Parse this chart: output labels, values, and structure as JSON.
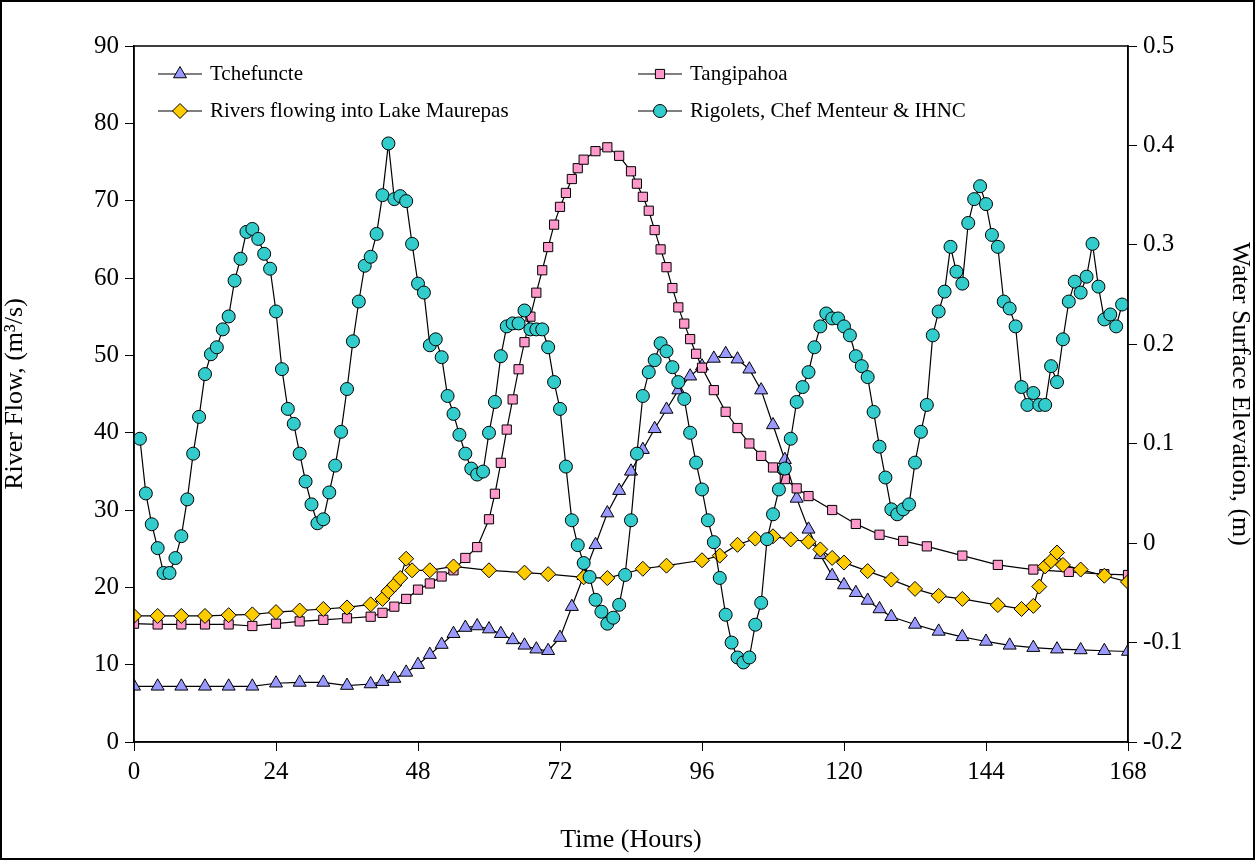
{
  "chart_data": {
    "type": "line",
    "xlabel": "Time (Hours)",
    "ylabel": "River Flow, (m³/s)",
    "y2label": "Water Surface Elevation, (m)",
    "xlim": [
      0,
      168
    ],
    "xticks": [
      0,
      24,
      48,
      72,
      96,
      120,
      144,
      168
    ],
    "ylim": [
      0,
      90
    ],
    "yticks": [
      0,
      10,
      20,
      30,
      40,
      50,
      60,
      70,
      80,
      90
    ],
    "y2lim": [
      -0.2,
      0.5
    ],
    "y2ticks": [
      -0.2,
      -0.1,
      0,
      0.1,
      0.2,
      0.3,
      0.4,
      0.5
    ],
    "legend": "top",
    "grid": false,
    "line_style": "solid",
    "series": [
      {
        "name": "Tchefuncte",
        "color": "#9999ff",
        "marker": "triangle",
        "x": [
          0,
          4,
          8,
          12,
          16,
          20,
          24,
          28,
          32,
          36,
          40,
          42,
          44,
          46,
          48,
          50,
          52,
          54,
          56,
          58,
          60,
          62,
          64,
          66,
          68,
          70,
          72,
          74,
          76,
          78,
          80,
          82,
          84,
          86,
          88,
          90,
          92,
          94,
          96,
          98,
          100,
          102,
          104,
          106,
          108,
          110,
          112,
          114,
          116,
          118,
          120,
          122,
          124,
          126,
          128,
          132,
          136,
          140,
          144,
          148,
          152,
          156,
          160,
          164,
          168
        ],
        "values": [
          7.2,
          7.2,
          7.2,
          7.2,
          7.2,
          7.2,
          7.6,
          7.7,
          7.7,
          7.3,
          7.5,
          7.8,
          8.2,
          9,
          10,
          11.3,
          12.6,
          14,
          14.8,
          15,
          14.6,
          14,
          13.2,
          12.5,
          12,
          11.8,
          13.5,
          17.5,
          21.5,
          25.5,
          29.6,
          32.5,
          35,
          37.8,
          40.5,
          43,
          45.5,
          47.3,
          48.6,
          49.6,
          50.2,
          49.5,
          48.2,
          45.5,
          41,
          36.5,
          31.5,
          27.5,
          24.2,
          21.5,
          20.3,
          19.3,
          18.3,
          17.2,
          16.2,
          15.2,
          14.3,
          13.6,
          13,
          12.5,
          12.2,
          12,
          11.9,
          11.8,
          11.7
        ]
      },
      {
        "name": "Tangipahoa",
        "color": "#ff99cc",
        "marker": "square",
        "x": [
          0,
          4,
          8,
          12,
          16,
          20,
          24,
          28,
          32,
          36,
          40,
          42,
          44,
          46,
          48,
          50,
          52,
          54,
          56,
          58,
          60,
          61,
          62,
          63,
          64,
          65,
          66,
          67,
          68,
          69,
          70,
          71,
          72,
          73,
          74,
          75,
          76,
          78,
          80,
          82,
          84,
          85,
          86,
          87,
          88,
          89,
          90,
          91,
          92,
          93,
          94,
          95,
          96,
          98,
          100,
          102,
          104,
          106,
          108,
          110,
          112,
          114,
          118,
          122,
          126,
          130,
          134,
          140,
          146,
          152,
          158,
          164,
          168
        ],
        "values": [
          15.3,
          15.2,
          15.2,
          15.2,
          15.2,
          15,
          15.3,
          15.6,
          15.8,
          16,
          16.2,
          16.7,
          17.5,
          18.5,
          19.7,
          20.5,
          21.4,
          22.2,
          23.8,
          25.2,
          28.8,
          32.1,
          36.1,
          40.4,
          44.3,
          48.2,
          51.7,
          55,
          58.1,
          61,
          64,
          66.9,
          69.2,
          71,
          72.8,
          74.2,
          75.3,
          76.4,
          76.9,
          75.8,
          73.8,
          72.2,
          70.5,
          68.7,
          66.2,
          63.7,
          61.4,
          58.7,
          56.2,
          54.1,
          52.1,
          50.2,
          48.4,
          45.5,
          42.7,
          40.6,
          38.6,
          37,
          35.5,
          34,
          32.8,
          31.8,
          30,
          28.2,
          26.8,
          26,
          25.3,
          24.1,
          22.9,
          22.3,
          22,
          21.7,
          21.6
        ]
      },
      {
        "name": "Rivers flowing into Lake Maurepas",
        "color": "#ffcc00",
        "marker": "diamond",
        "x": [
          0,
          4,
          8,
          12,
          16,
          20,
          24,
          28,
          32,
          36,
          40,
          42,
          43,
          44,
          45,
          46,
          47,
          50,
          54,
          60,
          66,
          70,
          76,
          80,
          86,
          90,
          96,
          99,
          102,
          105,
          108,
          111,
          114,
          116,
          118,
          120,
          124,
          128,
          132,
          136,
          140,
          146,
          150,
          152,
          153,
          154,
          155,
          156,
          157,
          160,
          164,
          168
        ],
        "values": [
          16.3,
          16.3,
          16.3,
          16.3,
          16.4,
          16.5,
          16.8,
          17,
          17.2,
          17.4,
          17.8,
          18.5,
          19.5,
          20.3,
          21.2,
          23.7,
          22.2,
          22.2,
          22.7,
          22.2,
          21.9,
          21.7,
          21.3,
          21.2,
          22.4,
          22.8,
          23.5,
          24.1,
          25.5,
          26.3,
          26.6,
          26.2,
          25.9,
          24.9,
          23.8,
          23.2,
          22.1,
          21,
          19.8,
          18.9,
          18.5,
          17.7,
          17.2,
          17.6,
          20.1,
          22.7,
          23.4,
          24.5,
          22.9,
          22.3,
          21.5,
          20.7
        ]
      },
      {
        "name": "Rigolets, Chef Menteur & IHNC",
        "color": "#33cccc",
        "marker": "circle",
        "axis": "y2",
        "x": [
          1,
          2,
          3,
          4,
          5,
          6,
          7,
          8,
          9,
          10,
          11,
          12,
          13,
          14,
          15,
          16,
          17,
          18,
          19,
          20,
          21,
          22,
          23,
          24,
          25,
          26,
          27,
          28,
          29,
          30,
          31,
          32,
          33,
          34,
          35,
          36,
          37,
          38,
          39,
          40,
          41,
          42,
          43,
          44,
          45,
          46,
          47,
          48,
          49,
          50,
          51,
          52,
          53,
          54,
          55,
          56,
          57,
          58,
          59,
          60,
          61,
          62,
          63,
          64,
          65,
          66,
          67,
          68,
          69,
          70,
          71,
          72,
          73,
          74,
          75,
          76,
          77,
          78,
          79,
          80,
          81,
          82,
          83,
          84,
          85,
          86,
          87,
          88,
          89,
          90,
          91,
          92,
          93,
          94,
          95,
          96,
          97,
          98,
          99,
          100,
          101,
          102,
          103,
          104,
          105,
          106,
          107,
          108,
          109,
          110,
          111,
          112,
          113,
          114,
          115,
          116,
          117,
          118,
          119,
          120,
          121,
          122,
          123,
          124,
          125,
          126,
          127,
          128,
          129,
          130,
          131,
          132,
          133,
          134,
          135,
          136,
          137,
          138,
          139,
          140,
          141,
          142,
          143,
          144,
          145,
          146,
          147,
          148,
          149,
          150,
          151,
          152,
          153,
          154,
          155,
          156,
          157,
          158,
          159,
          160,
          161,
          162,
          163,
          164,
          165,
          166,
          167
        ],
        "values": [
          0.105,
          0.05,
          0.019,
          -0.005,
          -0.03,
          -0.03,
          -0.015,
          0.007,
          0.044,
          0.09,
          0.127,
          0.17,
          0.19,
          0.197,
          0.215,
          0.228,
          0.264,
          0.286,
          0.313,
          0.316,
          0.306,
          0.291,
          0.276,
          0.233,
          0.175,
          0.135,
          0.12,
          0.09,
          0.062,
          0.039,
          0.02,
          0.024,
          0.051,
          0.078,
          0.112,
          0.155,
          0.203,
          0.243,
          0.279,
          0.288,
          0.311,
          0.35,
          0.402,
          0.346,
          0.349,
          0.344,
          0.301,
          0.261,
          0.252,
          0.199,
          0.205,
          0.187,
          0.148,
          0.13,
          0.109,
          0.09,
          0.075,
          0.069,
          0.072,
          0.111,
          0.142,
          0.188,
          0.218,
          0.221,
          0.221,
          0.234,
          0.215,
          0.215,
          0.215,
          0.197,
          0.162,
          0.135,
          0.077,
          0.023,
          -0.002,
          -0.02,
          -0.034,
          -0.057,
          -0.069,
          -0.081,
          -0.075,
          -0.062,
          -0.032,
          0.023,
          0.09,
          0.148,
          0.172,
          0.184,
          0.201,
          0.193,
          0.177,
          0.162,
          0.145,
          0.111,
          0.081,
          0.054,
          0.023,
          0.001,
          -0.035,
          -0.072,
          -0.1,
          -0.115,
          -0.12,
          -0.115,
          -0.082,
          -0.06,
          0.004,
          0.029,
          0.054,
          0.075,
          0.105,
          0.142,
          0.157,
          0.172,
          0.197,
          0.218,
          0.231,
          0.226,
          0.226,
          0.218,
          0.209,
          0.188,
          0.178,
          0.167,
          0.132,
          0.097,
          0.066,
          0.034,
          0.029,
          0.034,
          0.039,
          0.081,
          0.112,
          0.139,
          0.209,
          0.233,
          0.253,
          0.298,
          0.273,
          0.261,
          0.322,
          0.346,
          0.359,
          0.341,
          0.31,
          0.298,
          0.243,
          0.236,
          0.218,
          0.157,
          0.139,
          0.151,
          0.139,
          0.139,
          0.178,
          0.162,
          0.205,
          0.243,
          0.263,
          0.252,
          0.268,
          0.301,
          0.258,
          0.225,
          0.23,
          0.218,
          0.24
        ]
      }
    ]
  }
}
